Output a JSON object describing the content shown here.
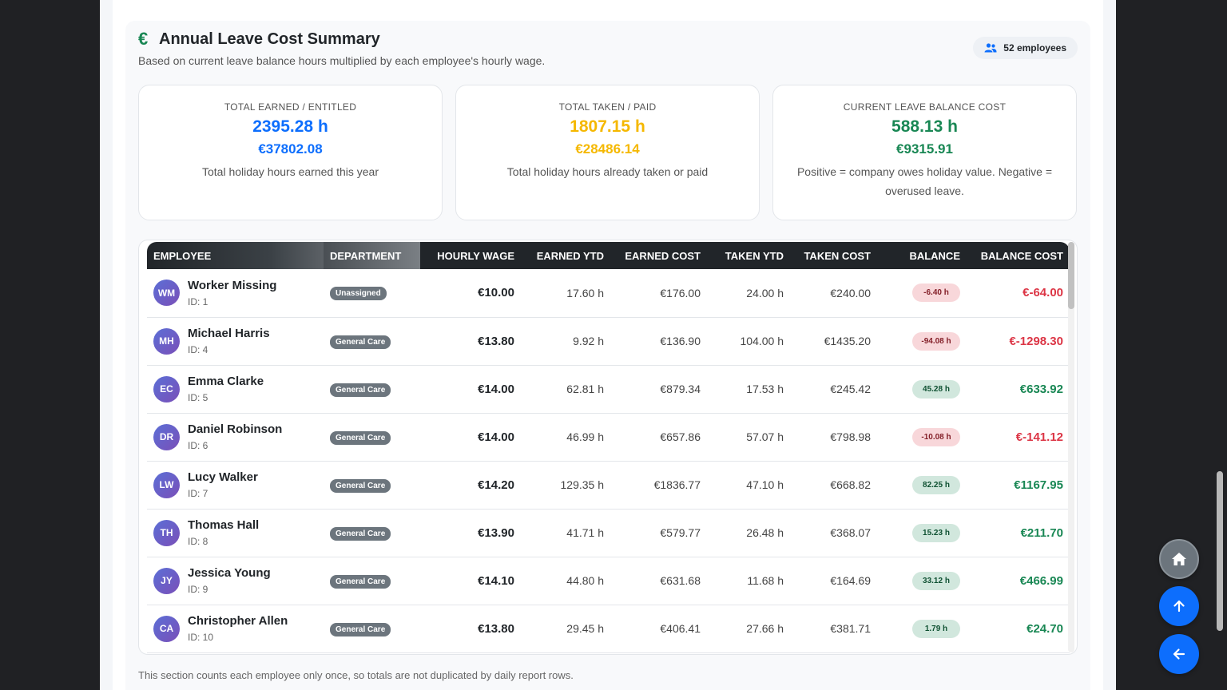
{
  "summary": {
    "title": "Annual Leave Cost Summary",
    "subtitle": "Based on current leave balance hours multiplied by each employee's hourly wage.",
    "employee_count": "52 employees",
    "footnote": "This section counts each employee only once, so totals are not duplicated by daily report rows."
  },
  "stats": {
    "earned": {
      "label": "TOTAL EARNED / ENTITLED",
      "hours": "2395.28 h",
      "cost": "€37802.08",
      "desc": "Total holiday hours earned this year"
    },
    "taken": {
      "label": "TOTAL TAKEN / PAID",
      "hours": "1807.15 h",
      "cost": "€28486.14",
      "desc": "Total holiday hours already taken or paid"
    },
    "balance": {
      "label": "CURRENT LEAVE BALANCE COST",
      "hours": "588.13 h",
      "cost": "€9315.91",
      "desc": "Positive = company owes holiday value. Negative = overused leave."
    }
  },
  "table": {
    "headers": [
      "Employee",
      "Department",
      "Hourly Wage",
      "Earned YTD",
      "Earned Cost",
      "Taken YTD",
      "Taken Cost",
      "Balance",
      "Balance Cost"
    ],
    "rows": [
      {
        "initials": "WM",
        "name": "Worker Missing",
        "id": "ID: 1",
        "dept": "Unassigned",
        "wage": "€10.00",
        "earned": "17.60 h",
        "earned_cost": "€176.00",
        "taken": "24.00 h",
        "taken_cost": "€240.00",
        "balance": "-6.40 h",
        "balance_cost": "€-64.00",
        "status": "neg"
      },
      {
        "initials": "MH",
        "name": "Michael Harris",
        "id": "ID: 4",
        "dept": "General Care",
        "wage": "€13.80",
        "earned": "9.92 h",
        "earned_cost": "€136.90",
        "taken": "104.00 h",
        "taken_cost": "€1435.20",
        "balance": "-94.08 h",
        "balance_cost": "€-1298.30",
        "status": "neg"
      },
      {
        "initials": "EC",
        "name": "Emma Clarke",
        "id": "ID: 5",
        "dept": "General Care",
        "wage": "€14.00",
        "earned": "62.81 h",
        "earned_cost": "€879.34",
        "taken": "17.53 h",
        "taken_cost": "€245.42",
        "balance": "45.28 h",
        "balance_cost": "€633.92",
        "status": "pos"
      },
      {
        "initials": "DR",
        "name": "Daniel Robinson",
        "id": "ID: 6",
        "dept": "General Care",
        "wage": "€14.00",
        "earned": "46.99 h",
        "earned_cost": "€657.86",
        "taken": "57.07 h",
        "taken_cost": "€798.98",
        "balance": "-10.08 h",
        "balance_cost": "€-141.12",
        "status": "neg"
      },
      {
        "initials": "LW",
        "name": "Lucy Walker",
        "id": "ID: 7",
        "dept": "General Care",
        "wage": "€14.20",
        "earned": "129.35 h",
        "earned_cost": "€1836.77",
        "taken": "47.10 h",
        "taken_cost": "€668.82",
        "balance": "82.25 h",
        "balance_cost": "€1167.95",
        "status": "pos"
      },
      {
        "initials": "TH",
        "name": "Thomas Hall",
        "id": "ID: 8",
        "dept": "General Care",
        "wage": "€13.90",
        "earned": "41.71 h",
        "earned_cost": "€579.77",
        "taken": "26.48 h",
        "taken_cost": "€368.07",
        "balance": "15.23 h",
        "balance_cost": "€211.70",
        "status": "pos"
      },
      {
        "initials": "JY",
        "name": "Jessica Young",
        "id": "ID: 9",
        "dept": "General Care",
        "wage": "€14.10",
        "earned": "44.80 h",
        "earned_cost": "€631.68",
        "taken": "11.68 h",
        "taken_cost": "€164.69",
        "balance": "33.12 h",
        "balance_cost": "€466.99",
        "status": "pos"
      },
      {
        "initials": "CA",
        "name": "Christopher Allen",
        "id": "ID: 10",
        "dept": "General Care",
        "wage": "€13.80",
        "earned": "29.45 h",
        "earned_cost": "€406.41",
        "taken": "27.66 h",
        "taken_cost": "€381.71",
        "balance": "1.79 h",
        "balance_cost": "€24.70",
        "status": "pos"
      }
    ]
  },
  "icons": {
    "title": "euro-icon",
    "count": "users-icon",
    "home": "home-icon",
    "up": "arrow-up-icon",
    "back": "arrow-left-icon"
  }
}
